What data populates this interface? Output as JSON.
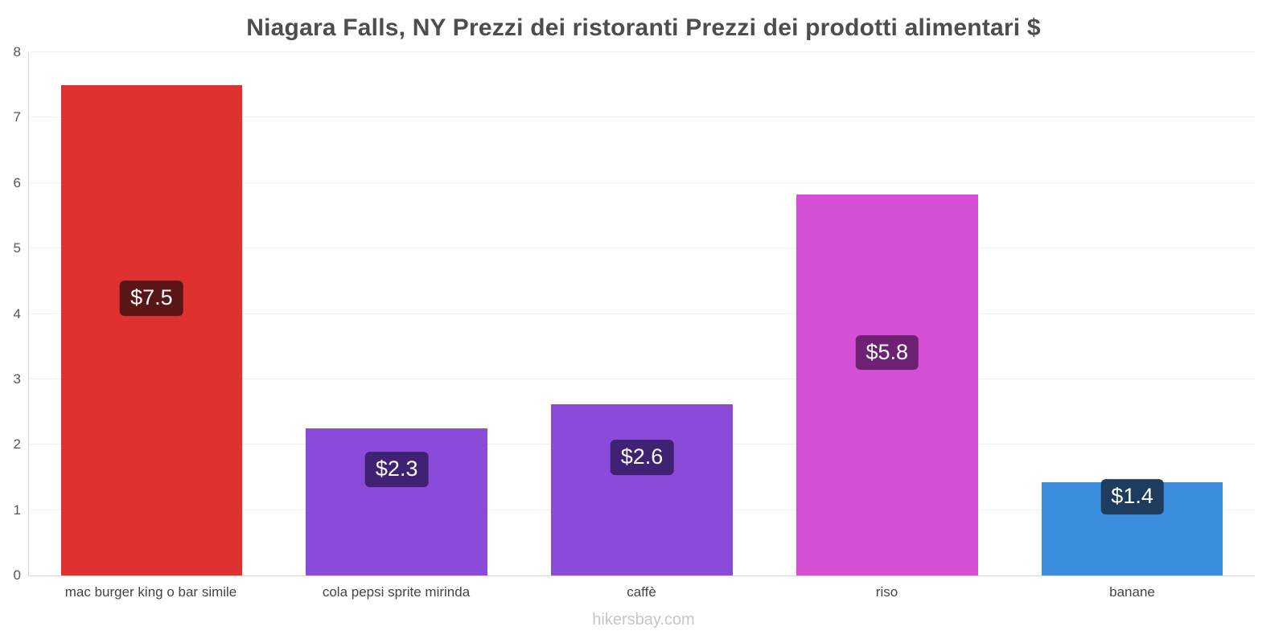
{
  "title": "Niagara Falls, NY Prezzi dei ristoranti Prezzi dei prodotti alimentari $",
  "footer": "hikersbay.com",
  "chart_data": {
    "type": "bar",
    "title": "Niagara Falls, NY Prezzi dei ristoranti Prezzi dei prodotti alimentari $",
    "categories": [
      "mac burger king o bar simile",
      "cola pepsi sprite mirinda",
      "caffè",
      "riso",
      "banane"
    ],
    "values": [
      7.5,
      2.25,
      2.62,
      5.83,
      1.42
    ],
    "value_labels": [
      "$7.5",
      "$2.3",
      "$2.6",
      "$5.8",
      "$1.4"
    ],
    "bar_colors": [
      "#e03131",
      "#8a4bd8",
      "#8a4bd8",
      "#d44fd4",
      "#3b8ede"
    ],
    "label_bg_colors": [
      "#5a1616",
      "#3f2273",
      "#3f2273",
      "#6e2173",
      "#1d3c5e"
    ],
    "xlabel": "",
    "ylabel": "",
    "ylim": [
      0,
      8
    ],
    "yticks": [
      0,
      1,
      2,
      3,
      4,
      5,
      6,
      7,
      8
    ],
    "grid": true,
    "legend": "none"
  }
}
